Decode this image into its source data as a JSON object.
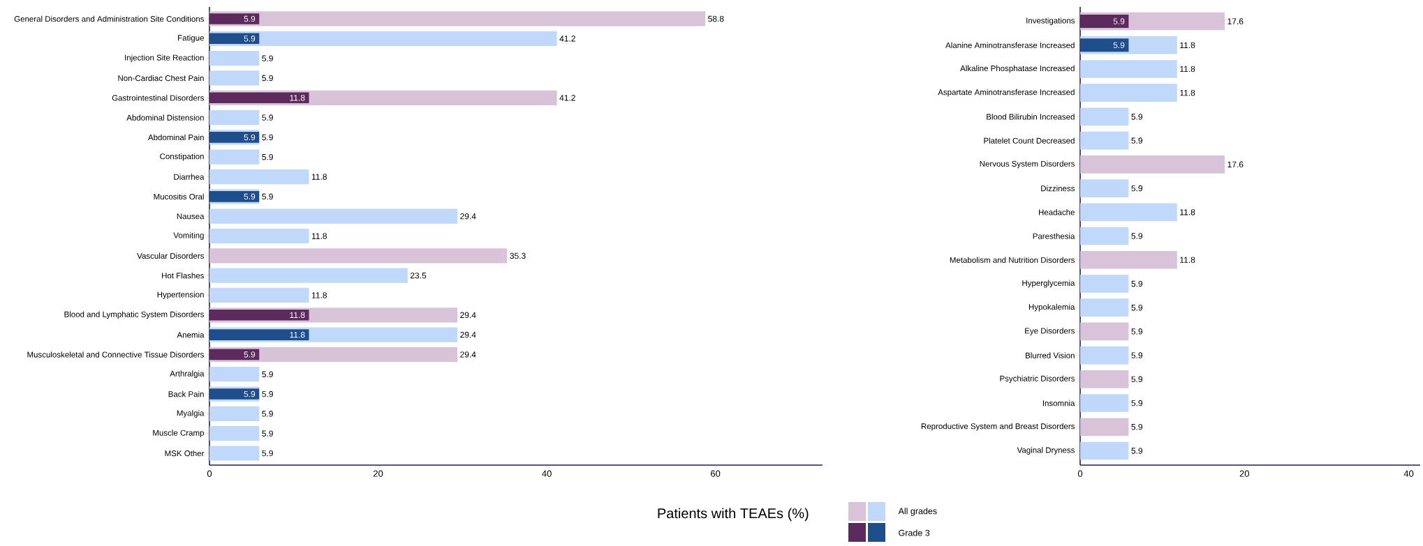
{
  "chart_data": [
    {
      "type": "bar",
      "orientation": "horizontal",
      "xlabel": "Patients with TEAEs (%)",
      "categories": [
        "General Disorders and Administration Site Conditions",
        "Fatigue",
        "Injection Site Reaction",
        "Non-Cardiac Chest Pain",
        "Gastrointestinal Disorders",
        "Abdominal Distension",
        "Abdominal Pain",
        "Constipation",
        "Diarrhea",
        "Mucositis Oral",
        "Nausea",
        "Vomiting",
        "Vascular Disorders",
        "Hot Flashes",
        "Hypertension",
        "Blood and Lymphatic System Disorders",
        "Anemia",
        "Musculoskeletal and Connective Tissue Disorders",
        "Arthralgia",
        "Back Pain",
        "Myalgia",
        "Muscle Cramp",
        "MSK Other"
      ],
      "series": [
        {
          "values": [
            58.8,
            41.2,
            5.9,
            5.9,
            41.2,
            5.9,
            5.9,
            5.9,
            11.8,
            5.9,
            29.4,
            11.8,
            35.3,
            23.5,
            11.8,
            29.4,
            29.4,
            29.4,
            5.9,
            5.9,
            5.9,
            5.9,
            5.9
          ],
          "colors": [
            "#d8c3d8",
            "#c0d8fa",
            "#c0d8fa",
            "#c0d8fa",
            "#d8c3d8",
            "#c0d8fa",
            "#c0d8fa",
            "#c0d8fa",
            "#c0d8fa",
            "#c0d8fa",
            "#c0d8fa",
            "#c0d8fa",
            "#d8c3d8",
            "#c0d8fa",
            "#c0d8fa",
            "#d8c3d8",
            "#c0d8fa",
            "#d8c3d8",
            "#c0d8fa",
            "#c0d8fa",
            "#c0d8fa",
            "#c0d8fa",
            "#c0d8fa"
          ]
        },
        {
          "values": [
            5.9,
            5.9,
            null,
            null,
            11.8,
            null,
            5.9,
            null,
            null,
            5.9,
            null,
            null,
            null,
            null,
            null,
            11.8,
            11.8,
            5.9,
            null,
            5.9,
            null,
            null,
            null
          ],
          "colors": [
            "#5c2a5c",
            "#1f4e8c",
            null,
            null,
            "#5c2a5c",
            null,
            "#1f4e8c",
            null,
            null,
            "#1f4e8c",
            null,
            null,
            null,
            null,
            null,
            "#5c2a5c",
            "#1f4e8c",
            "#5c2a5c",
            null,
            "#1f4e8c",
            null,
            null,
            null
          ]
        }
      ],
      "xlim": [
        0,
        72.7
      ],
      "xticks": [
        0,
        20,
        40,
        60
      ],
      "data_labels": true
    },
    {
      "type": "bar",
      "orientation": "horizontal",
      "categories": [
        "Investigations",
        "Alanine Aminotransferase Increased",
        "Alkaline Phosphatase Increased",
        "Aspartate Aminotransferase Increased",
        "Blood Bilirubin Increased",
        "Platelet Count Decreased",
        "Nervous System Disorders",
        "Dizziness",
        "Headache",
        "Paresthesia",
        "Metabolism and Nutrition Disorders",
        "Hyperglycemia",
        "Hypokalemia",
        "Eye Disorders",
        "Blurred Vision",
        "Psychiatric Disorders",
        "Insomnia",
        "Reproductive System and Breast Disorders",
        "Vaginal Dryness"
      ],
      "series": [
        {
          "name": "All grades",
          "values": [
            17.6,
            11.8,
            11.8,
            11.8,
            5.9,
            5.9,
            17.6,
            5.9,
            11.8,
            5.9,
            11.8,
            5.9,
            5.9,
            5.9,
            5.9,
            5.9,
            5.9,
            5.9,
            5.9
          ],
          "colors": [
            "#d8c3d8",
            "#c0d8fa",
            "#c0d8fa",
            "#c0d8fa",
            "#c0d8fa",
            "#c0d8fa",
            "#d8c3d8",
            "#c0d8fa",
            "#c0d8fa",
            "#c0d8fa",
            "#d8c3d8",
            "#c0d8fa",
            "#c0d8fa",
            "#d8c3d8",
            "#c0d8fa",
            "#d8c3d8",
            "#c0d8fa",
            "#d8c3d8",
            "#c0d8fa"
          ]
        },
        {
          "name": "Grade 3",
          "values": [
            5.9,
            5.9,
            null,
            null,
            null,
            null,
            null,
            null,
            null,
            null,
            null,
            null,
            null,
            null,
            null,
            null,
            null,
            null,
            null
          ],
          "colors": [
            "#5c2a5c",
            "#1f4e8c",
            null,
            null,
            null,
            null,
            null,
            null,
            null,
            null,
            null,
            null,
            null,
            null,
            null,
            null,
            null,
            null,
            null
          ]
        }
      ],
      "xlim": [
        0,
        41.4
      ],
      "xticks": [
        0,
        20,
        40
      ],
      "data_labels": true,
      "legend": "bottom left"
    }
  ]
}
